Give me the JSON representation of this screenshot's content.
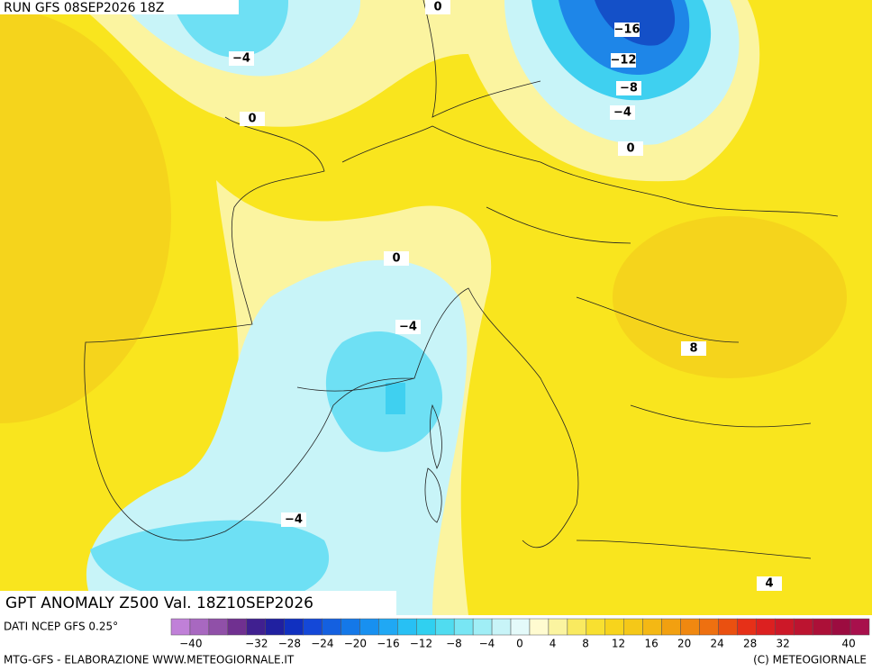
{
  "header": {
    "run": "RUN GFS 08SEP2026 18Z"
  },
  "map": {
    "contour_labels": [
      "0",
      "-16",
      "-4",
      "-12",
      "-8",
      "0",
      "-4",
      "0",
      "0",
      "-4",
      "8",
      "-4",
      "4"
    ]
  },
  "title": "GPT ANOMALY Z500 Val. 18Z10SEP2026",
  "source": "DATI NCEP GFS 0.25°",
  "legend": {
    "labels": [
      "-40",
      "-32",
      "-28",
      "-24",
      "-20",
      "-16",
      "-12",
      "-8",
      "-4",
      "0",
      "4",
      "8",
      "12",
      "16",
      "20",
      "24",
      "28",
      "32",
      "40"
    ]
  },
  "footer": {
    "left": "MTG-GFS - ELABORAZIONE WWW.METEOGIORNALE.IT",
    "right": "(C) METEOGIORNALE"
  }
}
